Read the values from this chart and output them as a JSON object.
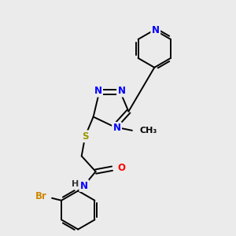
{
  "background_color": "#ebebeb",
  "bond_color": "#000000",
  "atom_colors": {
    "N": "#0000ff",
    "O": "#ff0000",
    "S": "#999900",
    "Br": "#cc8800",
    "C": "#000000",
    "H": "#333333"
  },
  "font_size": 8.5,
  "figsize": [
    3.0,
    3.0
  ],
  "dpi": 100,
  "lw": 1.4
}
